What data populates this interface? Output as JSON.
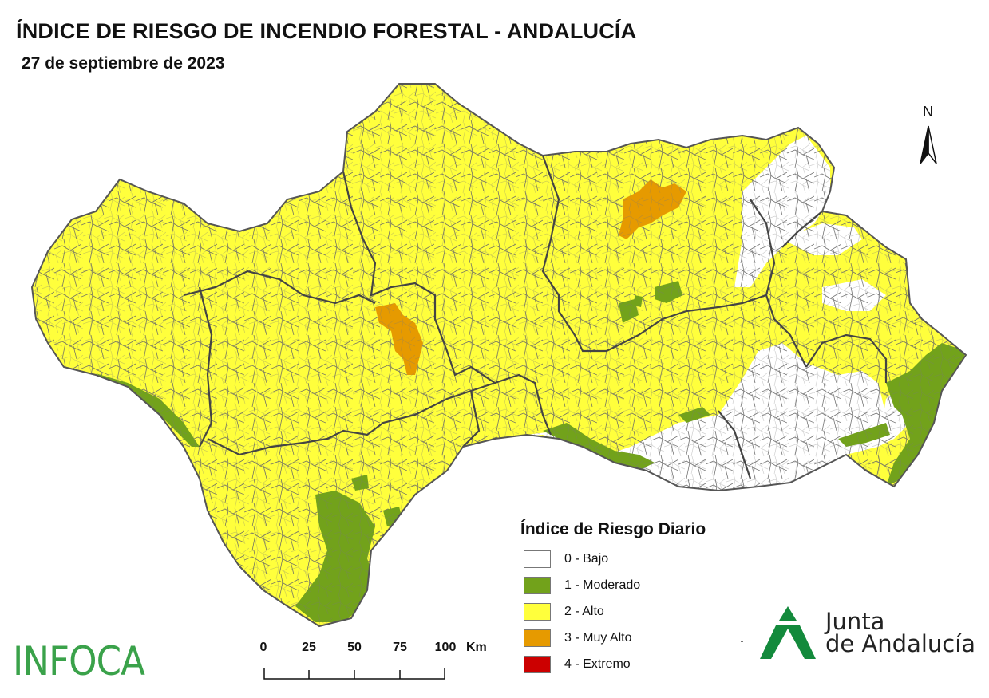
{
  "header": {
    "title": "ÍNDICE DE RIESGO DE INCENDIO FORESTAL - ANDALUCÍA",
    "date": "27 de septiembre de 2023"
  },
  "north_arrow": {
    "label": "N"
  },
  "legend": {
    "title": "Índice de Riesgo Diario",
    "items": [
      {
        "label": "0 - Bajo",
        "color": "#ffffff"
      },
      {
        "label": "1 - Moderado",
        "color": "#72a21b"
      },
      {
        "label": "2 - Alto",
        "color": "#ffff3c"
      },
      {
        "label": "3 - Muy Alto",
        "color": "#e69a00"
      },
      {
        "label": "4 - Extremo",
        "color": "#cc0000"
      }
    ]
  },
  "scale_bar": {
    "ticks": [
      "0",
      "25",
      "50",
      "75",
      "100"
    ],
    "unit": "Km"
  },
  "logos": {
    "infoca": "INFOCA",
    "junta_line1": "Junta",
    "junta_line2": "de Andalucía"
  },
  "colors": {
    "border": "#555555",
    "province_border": "#444444",
    "infoca_green": "#3aa24a",
    "junta_green": "#138a3c"
  }
}
